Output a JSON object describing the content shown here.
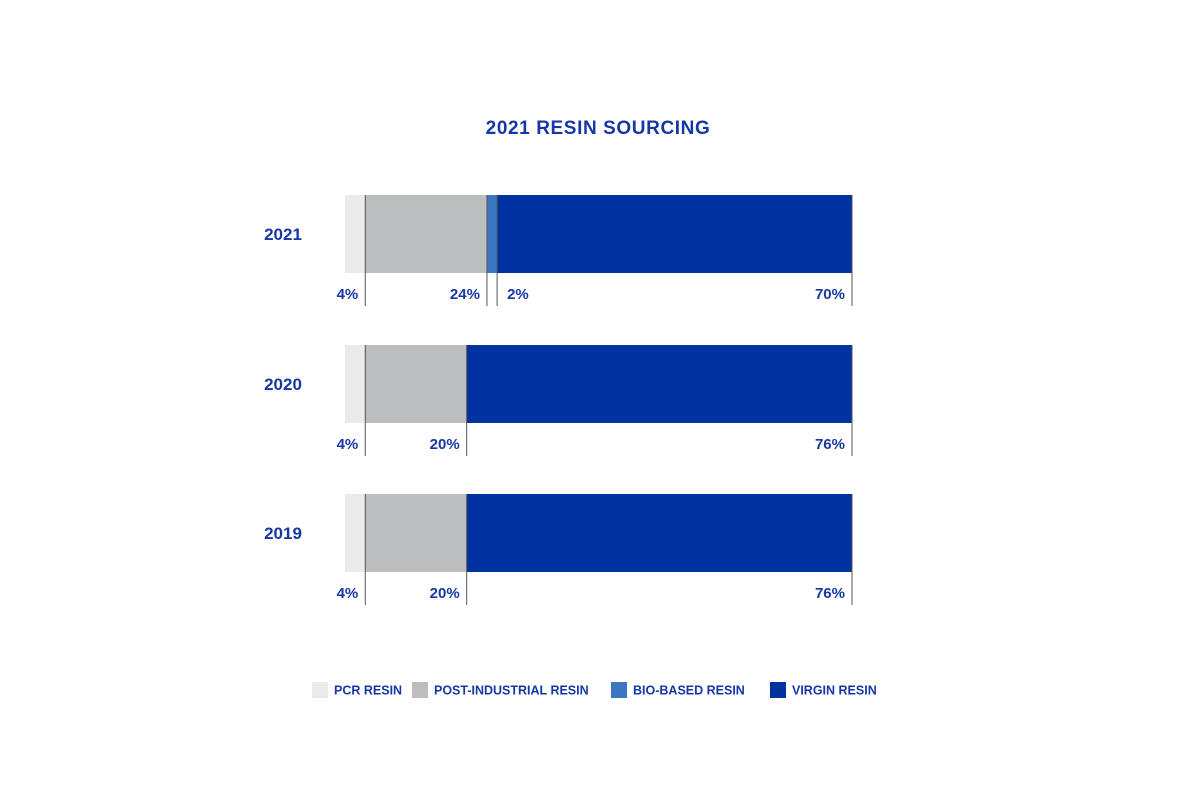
{
  "colors": {
    "text": "#1538a4",
    "PCR RESIN": "#ebebea",
    "POST-INDUSTRIAL RESIN": "#bcbdbf",
    "BIO-BASED RESIN": "#3d76c0",
    "VIRGIN RESIN": "#0033a1",
    "divider": "#555555"
  },
  "chart_data": {
    "type": "bar",
    "orientation": "horizontal",
    "stacked": true,
    "title": "2021 RESIN SOURCING",
    "categories": [
      "2021",
      "2020",
      "2019"
    ],
    "unit": "%",
    "series": [
      {
        "name": "PCR RESIN",
        "values": [
          4,
          4,
          4
        ],
        "labels": [
          "4%",
          "4%",
          "4%"
        ]
      },
      {
        "name": "POST-INDUSTRIAL RESIN",
        "values": [
          24,
          20,
          20
        ],
        "labels": [
          "24%",
          "20%",
          "20%"
        ]
      },
      {
        "name": "BIO-BASED RESIN",
        "values": [
          2,
          0,
          0
        ],
        "labels": [
          "2%",
          "",
          ""
        ]
      },
      {
        "name": "VIRGIN RESIN",
        "values": [
          70,
          76,
          76
        ],
        "labels": [
          "70%",
          "76%",
          "76%"
        ]
      }
    ],
    "legend": [
      "PCR RESIN",
      "POST-INDUSTRIAL RESIN",
      "BIO-BASED RESIN",
      "VIRGIN RESIN"
    ],
    "legend_position": "bottom",
    "xlim": [
      0,
      100
    ],
    "grid": false
  }
}
